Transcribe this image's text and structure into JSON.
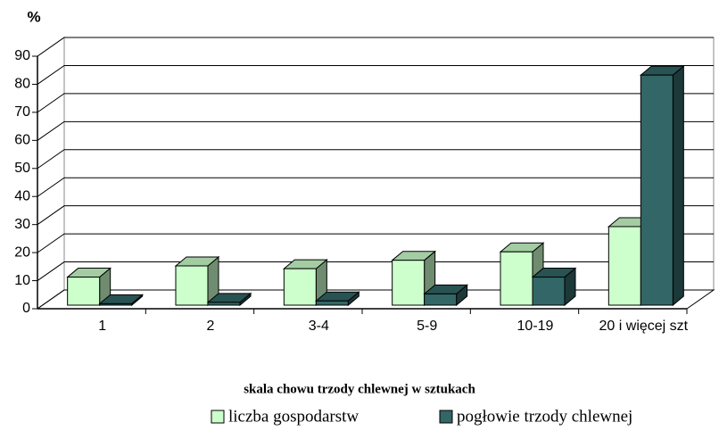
{
  "chart_data": {
    "type": "bar3d",
    "y_label": "%",
    "x_label": "skala chowu trzody chlewnej w sztukach",
    "categories": [
      "1",
      "2",
      "3-4",
      "5-9",
      "10-19",
      "20  i więcej szt"
    ],
    "series": [
      {
        "name": "liczba gospodarstw",
        "color": "#ccffcc",
        "values": [
          10,
          14,
          13,
          16,
          19,
          28
        ]
      },
      {
        "name": "pogłowie trzody chlewnej",
        "color": "#336666",
        "values": [
          0.5,
          1,
          1.5,
          4,
          10,
          82
        ]
      }
    ],
    "ylim": [
      0,
      90
    ],
    "yticks": [
      0,
      10,
      20,
      30,
      40,
      50,
      60,
      70,
      80,
      90
    ],
    "grid": true
  }
}
